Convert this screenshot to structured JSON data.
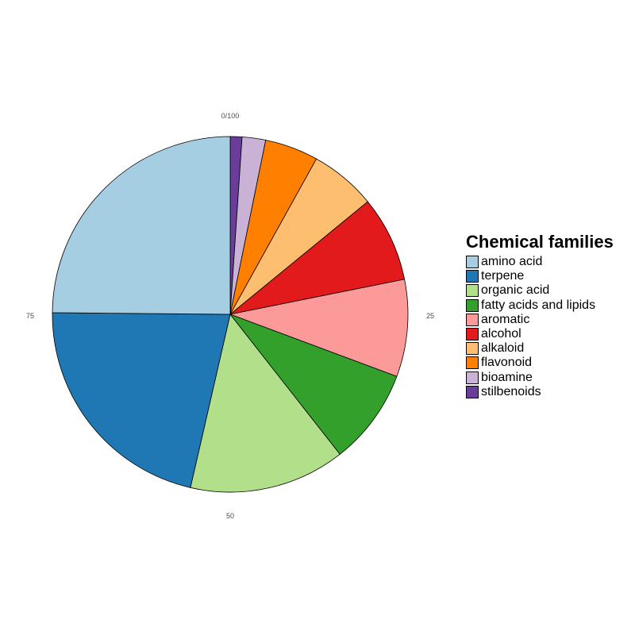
{
  "chart_data": {
    "type": "pie",
    "title": "",
    "legend_title": "Chemical families",
    "legend_position": "right",
    "categories": [
      "amino acid",
      "terpene",
      "organic acid",
      "fatty acids and lipids",
      "aromatic",
      "alcohol",
      "alkaloid",
      "flavonoid",
      "bioamine",
      "stilbenoids"
    ],
    "values": [
      25.6,
      22.2,
      14.6,
      9.0,
      9.1,
      8.0,
      6.2,
      5.0,
      2.2,
      1.1
    ],
    "slice_order_clockwise_from_top": [
      "stilbenoids",
      "bioamine",
      "flavonoid",
      "alkaloid",
      "alcohol",
      "aromatic",
      "fatty acids and lipids",
      "organic acid",
      "terpene",
      "amino acid"
    ],
    "colors": {
      "amino acid": "#A6CEE3",
      "terpene": "#1F78B4",
      "organic acid": "#B2DF8A",
      "fatty acids and lipids": "#33A02C",
      "aromatic": "#FB9A99",
      "alcohol": "#E31A1C",
      "alkaloid": "#FDBF6F",
      "flavonoid": "#FF7F00",
      "bioamine": "#CAB2D6",
      "stilbenoids": "#6A3D9A"
    },
    "angular_axis": {
      "range": [
        0,
        100
      ],
      "tick_labels": [
        "0/100",
        "25",
        "50",
        "75"
      ],
      "tick_values": [
        0,
        25,
        50,
        75
      ]
    }
  }
}
